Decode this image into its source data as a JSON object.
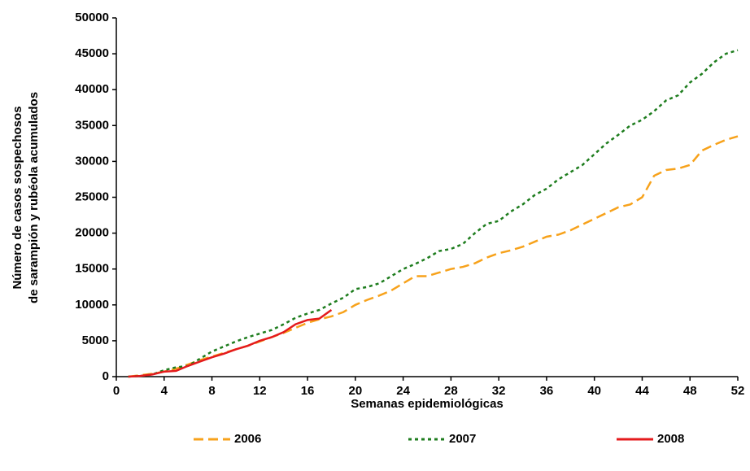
{
  "chart_data": {
    "type": "line",
    "xlabel": "Semanas epidemiológicas",
    "ylabel": [
      "Número de casos sospechosos",
      "de sarampión y rubéola acumulados"
    ],
    "x": [
      1,
      2,
      3,
      4,
      5,
      6,
      7,
      8,
      9,
      10,
      11,
      12,
      13,
      14,
      15,
      16,
      17,
      18,
      19,
      20,
      21,
      22,
      23,
      24,
      25,
      26,
      27,
      28,
      29,
      30,
      31,
      32,
      33,
      34,
      35,
      36,
      37,
      38,
      39,
      40,
      41,
      42,
      43,
      44,
      45,
      46,
      47,
      48,
      49,
      50,
      51,
      52
    ],
    "xlim": [
      0,
      52
    ],
    "xticks": [
      0,
      4,
      8,
      12,
      16,
      20,
      24,
      28,
      32,
      36,
      40,
      44,
      48,
      52
    ],
    "ylim": [
      0,
      50000
    ],
    "yticks": [
      0,
      5000,
      10000,
      15000,
      20000,
      25000,
      30000,
      35000,
      40000,
      45000,
      50000
    ],
    "grid": false,
    "legend": "bottom",
    "series": [
      {
        "name": "2006",
        "color": "#f7a21b",
        "dash": "dashed",
        "values": [
          0,
          200,
          400,
          700,
          1100,
          1700,
          2300,
          2800,
          3300,
          3800,
          4300,
          4900,
          5500,
          6100,
          6800,
          7500,
          8000,
          8400,
          9000,
          10000,
          10700,
          11300,
          12000,
          13000,
          14000,
          14000,
          14500,
          15000,
          15300,
          15800,
          16600,
          17200,
          17600,
          18100,
          18800,
          19500,
          19800,
          20400,
          21200,
          22000,
          22800,
          23600,
          24000,
          25000,
          28000,
          28800,
          29000,
          29500,
          31500,
          32300,
          33000,
          33500
        ]
      },
      {
        "name": "2007",
        "color": "#1e7d1e",
        "dash": "dotted",
        "values": [
          0,
          100,
          300,
          900,
          1300,
          1500,
          2500,
          3500,
          4200,
          4900,
          5500,
          6000,
          6500,
          7300,
          8200,
          8800,
          9300,
          10200,
          11000,
          12200,
          12500,
          13000,
          14000,
          15000,
          15700,
          16500,
          17500,
          17800,
          18500,
          20000,
          21300,
          21700,
          23000,
          24000,
          25300,
          26200,
          27500,
          28500,
          29500,
          31000,
          32500,
          33700,
          35000,
          35800,
          37000,
          38500,
          39200,
          41000,
          42200,
          43800,
          45000,
          45500
        ]
      },
      {
        "name": "2008",
        "color": "#e41a1c",
        "dash": "solid",
        "values": [
          0,
          100,
          300,
          700,
          800,
          1500,
          2100,
          2700,
          3200,
          3800,
          4300,
          5000,
          5500,
          6200,
          7300,
          7900,
          8100,
          9300,
          null,
          null,
          null,
          null,
          null,
          null,
          null,
          null,
          null,
          null,
          null,
          null,
          null,
          null,
          null,
          null,
          null,
          null,
          null,
          null,
          null,
          null,
          null,
          null,
          null,
          null,
          null,
          null,
          null,
          null,
          null,
          null,
          null,
          null
        ]
      }
    ]
  }
}
